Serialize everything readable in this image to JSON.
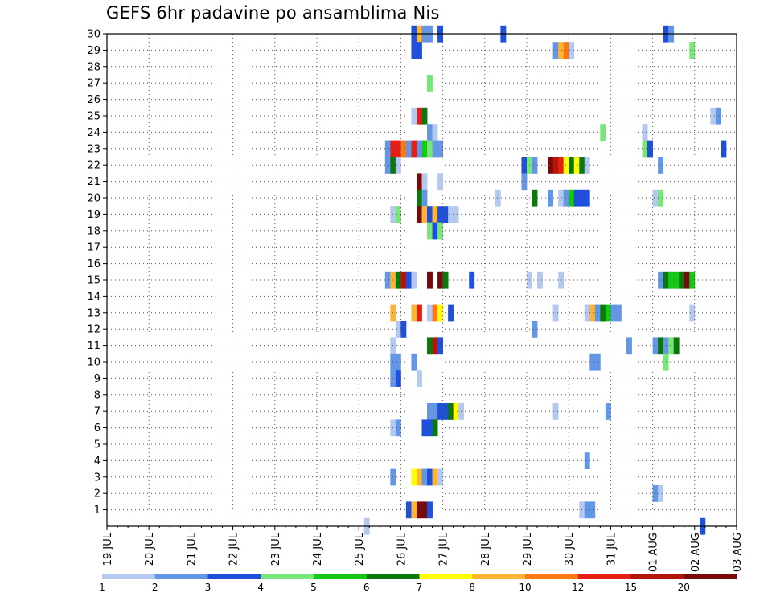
{
  "title": "GEFS 6hr padavine po ansamblima Nis",
  "chart_data": {
    "type": "heatmap",
    "title": "GEFS 6hr padavine po ansamblima Nis",
    "x_tick_labels": [
      "19 JUL",
      "20 JUL",
      "21 JUL",
      "22 JUL",
      "23 JUL",
      "24 JUL",
      "25 JUL",
      "26 JUL",
      "27 JUL",
      "28 JUL",
      "29 JUL",
      "30 JUL",
      "31 JUL",
      "01 AUG",
      "02 AUG",
      "03 AUG"
    ],
    "xlim": [
      "19 JUL 00Z",
      "03 AUG 00Z"
    ],
    "time_step_hours": 6,
    "y_tick_labels": [
      "1",
      "2",
      "3",
      "4",
      "5",
      "6",
      "7",
      "8",
      "9",
      "10",
      "11",
      "12",
      "13",
      "14",
      "15",
      "16",
      "17",
      "18",
      "19",
      "20",
      "21",
      "22",
      "23",
      "24",
      "25",
      "26",
      "27",
      "28",
      "29",
      "30"
    ],
    "ylim": [
      0,
      30
    ],
    "grid": true,
    "legend": {
      "placement": "bottom",
      "labels": [
        "1",
        "2",
        "3",
        "4",
        "5",
        "6",
        "7",
        "8",
        "10",
        "12",
        "15",
        "20"
      ],
      "colors": [
        "#b4c8f0",
        "#6496e6",
        "#1e50dc",
        "#78e678",
        "#14c814",
        "#0a780a",
        "#ffff00",
        "#ffb432",
        "#ff7814",
        "#e61e14",
        "#b4140a",
        "#780a0a"
      ]
    },
    "color_class_note": "cell value c = legend color index (0-11)",
    "cells": [
      [
        58,
        30,
        2
      ],
      [
        59,
        30,
        7
      ],
      [
        60,
        30,
        1
      ],
      [
        61,
        30,
        1
      ],
      [
        63,
        30,
        2
      ],
      [
        75,
        30,
        2
      ],
      [
        106,
        30,
        2
      ],
      [
        107,
        30,
        1
      ],
      [
        58,
        29,
        2
      ],
      [
        59,
        29,
        2
      ],
      [
        85,
        29,
        1
      ],
      [
        86,
        29,
        7
      ],
      [
        87,
        29,
        8
      ],
      [
        88,
        29,
        0
      ],
      [
        111,
        29,
        3
      ],
      [
        61,
        27,
        3
      ],
      [
        59,
        25,
        9
      ],
      [
        60,
        25,
        5
      ],
      [
        58,
        25,
        0
      ],
      [
        115,
        25,
        0
      ],
      [
        116,
        25,
        1
      ],
      [
        61,
        24,
        1
      ],
      [
        62,
        24,
        0
      ],
      [
        94,
        24,
        3
      ],
      [
        102,
        24,
        0
      ],
      [
        53,
        23,
        1
      ],
      [
        54,
        23,
        9
      ],
      [
        55,
        23,
        9
      ],
      [
        56,
        23,
        8
      ],
      [
        57,
        23,
        1
      ],
      [
        58,
        23,
        9
      ],
      [
        59,
        23,
        1
      ],
      [
        60,
        23,
        4
      ],
      [
        61,
        23,
        3
      ],
      [
        62,
        23,
        1
      ],
      [
        63,
        23,
        1
      ],
      [
        102,
        23,
        3
      ],
      [
        103,
        23,
        2
      ],
      [
        117,
        23,
        2
      ],
      [
        53,
        22,
        1
      ],
      [
        54,
        22,
        5
      ],
      [
        55,
        22,
        0
      ],
      [
        79,
        22,
        2
      ],
      [
        80,
        22,
        3
      ],
      [
        81,
        22,
        1
      ],
      [
        84,
        22,
        11
      ],
      [
        85,
        22,
        10
      ],
      [
        86,
        22,
        9
      ],
      [
        87,
        22,
        6
      ],
      [
        88,
        22,
        5
      ],
      [
        89,
        22,
        6
      ],
      [
        90,
        22,
        5
      ],
      [
        91,
        22,
        0
      ],
      [
        105,
        22,
        1
      ],
      [
        59,
        21,
        11
      ],
      [
        60,
        21,
        0
      ],
      [
        63,
        21,
        0
      ],
      [
        79,
        21,
        1
      ],
      [
        59,
        20,
        5
      ],
      [
        60,
        20,
        1
      ],
      [
        74,
        20,
        0
      ],
      [
        81,
        20,
        5
      ],
      [
        84,
        20,
        1
      ],
      [
        86,
        20,
        0
      ],
      [
        87,
        20,
        1
      ],
      [
        88,
        20,
        4
      ],
      [
        89,
        20,
        2
      ],
      [
        90,
        20,
        2
      ],
      [
        91,
        20,
        2
      ],
      [
        104,
        20,
        0
      ],
      [
        105,
        20,
        3
      ],
      [
        54,
        19,
        0
      ],
      [
        55,
        19,
        3
      ],
      [
        59,
        19,
        11
      ],
      [
        60,
        19,
        7
      ],
      [
        61,
        19,
        2
      ],
      [
        62,
        19,
        7
      ],
      [
        63,
        19,
        2
      ],
      [
        64,
        19,
        2
      ],
      [
        65,
        19,
        0
      ],
      [
        66,
        19,
        0
      ],
      [
        61,
        18,
        3
      ],
      [
        62,
        18,
        2
      ],
      [
        63,
        18,
        3
      ],
      [
        53,
        15,
        1
      ],
      [
        54,
        15,
        7
      ],
      [
        55,
        15,
        5
      ],
      [
        56,
        15,
        10
      ],
      [
        57,
        15,
        2
      ],
      [
        58,
        15,
        0
      ],
      [
        61,
        15,
        11
      ],
      [
        63,
        15,
        11
      ],
      [
        64,
        15,
        5
      ],
      [
        69,
        15,
        2
      ],
      [
        80,
        15,
        0
      ],
      [
        82,
        15,
        0
      ],
      [
        86,
        15,
        0
      ],
      [
        105,
        15,
        1
      ],
      [
        106,
        15,
        5
      ],
      [
        107,
        15,
        4
      ],
      [
        108,
        15,
        4
      ],
      [
        109,
        15,
        5
      ],
      [
        110,
        15,
        11
      ],
      [
        111,
        15,
        4
      ],
      [
        54,
        13,
        7
      ],
      [
        58,
        13,
        7
      ],
      [
        59,
        13,
        9
      ],
      [
        61,
        13,
        0
      ],
      [
        62,
        13,
        8
      ],
      [
        63,
        13,
        6
      ],
      [
        65,
        13,
        2
      ],
      [
        85,
        13,
        0
      ],
      [
        91,
        13,
        0
      ],
      [
        92,
        13,
        7
      ],
      [
        93,
        13,
        1
      ],
      [
        94,
        13,
        5
      ],
      [
        95,
        13,
        4
      ],
      [
        96,
        13,
        1
      ],
      [
        97,
        13,
        1
      ],
      [
        111,
        13,
        0
      ],
      [
        55,
        12,
        0
      ],
      [
        56,
        12,
        2
      ],
      [
        81,
        12,
        1
      ],
      [
        54,
        11,
        0
      ],
      [
        61,
        11,
        5
      ],
      [
        62,
        11,
        10
      ],
      [
        63,
        11,
        2
      ],
      [
        99,
        11,
        1
      ],
      [
        104,
        11,
        1
      ],
      [
        105,
        11,
        5
      ],
      [
        106,
        11,
        1
      ],
      [
        107,
        11,
        3
      ],
      [
        108,
        11,
        5
      ],
      [
        54,
        10,
        1
      ],
      [
        55,
        10,
        1
      ],
      [
        58,
        10,
        1
      ],
      [
        92,
        10,
        1
      ],
      [
        93,
        10,
        1
      ],
      [
        106,
        10,
        3
      ],
      [
        54,
        9,
        1
      ],
      [
        55,
        9,
        2
      ],
      [
        59,
        9,
        0
      ],
      [
        61,
        7,
        1
      ],
      [
        62,
        7,
        1
      ],
      [
        63,
        7,
        2
      ],
      [
        64,
        7,
        2
      ],
      [
        65,
        7,
        5
      ],
      [
        66,
        7,
        6
      ],
      [
        67,
        7,
        0
      ],
      [
        85,
        7,
        0
      ],
      [
        95,
        7,
        1
      ],
      [
        54,
        6,
        0
      ],
      [
        55,
        6,
        1
      ],
      [
        60,
        6,
        2
      ],
      [
        61,
        6,
        2
      ],
      [
        62,
        6,
        5
      ],
      [
        91,
        4,
        1
      ],
      [
        54,
        3,
        1
      ],
      [
        58,
        3,
        6
      ],
      [
        59,
        3,
        7
      ],
      [
        60,
        3,
        1
      ],
      [
        61,
        3,
        2
      ],
      [
        62,
        3,
        7
      ],
      [
        63,
        3,
        0
      ],
      [
        104,
        2,
        1
      ],
      [
        105,
        2,
        0
      ],
      [
        57,
        1,
        2
      ],
      [
        58,
        1,
        7
      ],
      [
        59,
        1,
        11
      ],
      [
        60,
        1,
        11
      ],
      [
        61,
        1,
        2
      ],
      [
        90,
        1,
        0
      ],
      [
        91,
        1,
        1
      ],
      [
        92,
        1,
        1
      ],
      [
        49,
        0,
        0
      ],
      [
        113,
        0,
        2
      ]
    ]
  }
}
